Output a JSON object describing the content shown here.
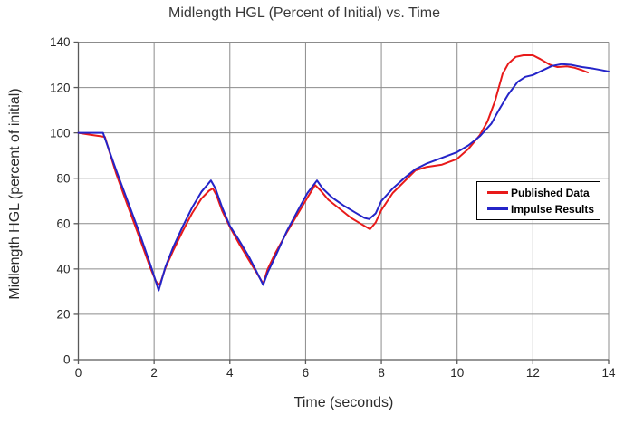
{
  "chart_data": {
    "type": "line",
    "title": "Midlength HGL (Percent of Initial) vs. Time",
    "xlabel": "Time (seconds)",
    "ylabel": "Midlength HGL (percent of initial)",
    "xlim": [
      0,
      14
    ],
    "ylim": [
      0,
      140
    ],
    "xticks": [
      0,
      2,
      4,
      6,
      8,
      10,
      12,
      14
    ],
    "yticks": [
      0,
      20,
      40,
      60,
      80,
      100,
      120,
      140
    ],
    "grid": true,
    "legend_position": "inside-right",
    "colors": {
      "grid": "#8c8c8c",
      "axis": "#595959",
      "tick_text": "#262626",
      "background": "#ffffff"
    },
    "series": [
      {
        "name": "Published Data",
        "color": "#e81a1a",
        "x": [
          0,
          0.3,
          0.55,
          0.7,
          1.0,
          1.3,
          1.6,
          1.9,
          2.05,
          2.15,
          2.3,
          2.5,
          2.75,
          3.0,
          3.25,
          3.45,
          3.55,
          3.65,
          3.8,
          4.0,
          4.25,
          4.5,
          4.7,
          4.88,
          5.0,
          5.2,
          5.5,
          5.8,
          6.05,
          6.25,
          6.4,
          6.6,
          6.9,
          7.2,
          7.45,
          7.7,
          7.85,
          8.0,
          8.3,
          8.6,
          8.9,
          9.2,
          9.6,
          10.0,
          10.3,
          10.6,
          10.8,
          11.0,
          11.2,
          11.35,
          11.55,
          11.75,
          12.0,
          12.2,
          12.45,
          12.65,
          12.9,
          13.1,
          13.3,
          13.45
        ],
        "y": [
          100,
          99.2,
          98.6,
          98.2,
          82,
          68,
          54.5,
          40.5,
          34.5,
          33,
          40.5,
          48,
          56.5,
          64.5,
          71,
          74.5,
          75.5,
          72.5,
          65.5,
          58.5,
          51,
          44,
          38.5,
          33.5,
          40,
          47,
          56,
          64.5,
          71.5,
          77,
          74.5,
          70.5,
          66.5,
          62.5,
          60,
          57.5,
          60.5,
          66,
          73.5,
          78.5,
          83.5,
          85,
          86,
          88.5,
          93,
          99,
          105,
          114,
          126,
          130.5,
          133.5,
          134.2,
          134.2,
          132.5,
          130,
          129,
          129.3,
          128.7,
          127.6,
          126.6
        ]
      },
      {
        "name": "Impulse Results",
        "color": "#2424c8",
        "x": [
          0,
          0.65,
          1.0,
          1.3,
          1.6,
          1.9,
          2.12,
          2.3,
          2.5,
          2.75,
          3.0,
          3.25,
          3.5,
          3.62,
          3.8,
          4.0,
          4.25,
          4.5,
          4.7,
          4.88,
          5.0,
          5.2,
          5.5,
          5.8,
          6.05,
          6.3,
          6.45,
          6.7,
          7.0,
          7.3,
          7.55,
          7.68,
          7.85,
          8.0,
          8.3,
          8.6,
          8.9,
          9.2,
          9.6,
          10.0,
          10.3,
          10.6,
          10.9,
          11.1,
          11.35,
          11.6,
          11.8,
          12.0,
          12.25,
          12.5,
          12.75,
          13.0,
          13.3,
          13.6,
          13.8,
          14.0
        ],
        "y": [
          100,
          100,
          83.5,
          70,
          56.5,
          42,
          30.5,
          41,
          49.5,
          58.5,
          67,
          74,
          79,
          75.5,
          67,
          59,
          52.5,
          45.5,
          39,
          33,
          38.5,
          45.5,
          56.5,
          66,
          73.5,
          79,
          75.5,
          71.5,
          68,
          65,
          62.5,
          62,
          64.5,
          70,
          75.5,
          80,
          84,
          86.5,
          89,
          91.5,
          94.5,
          98.5,
          104,
          110,
          117,
          122.5,
          124.7,
          125.5,
          127.5,
          129.5,
          130.3,
          130,
          129,
          128.3,
          127.7,
          127
        ]
      }
    ]
  }
}
